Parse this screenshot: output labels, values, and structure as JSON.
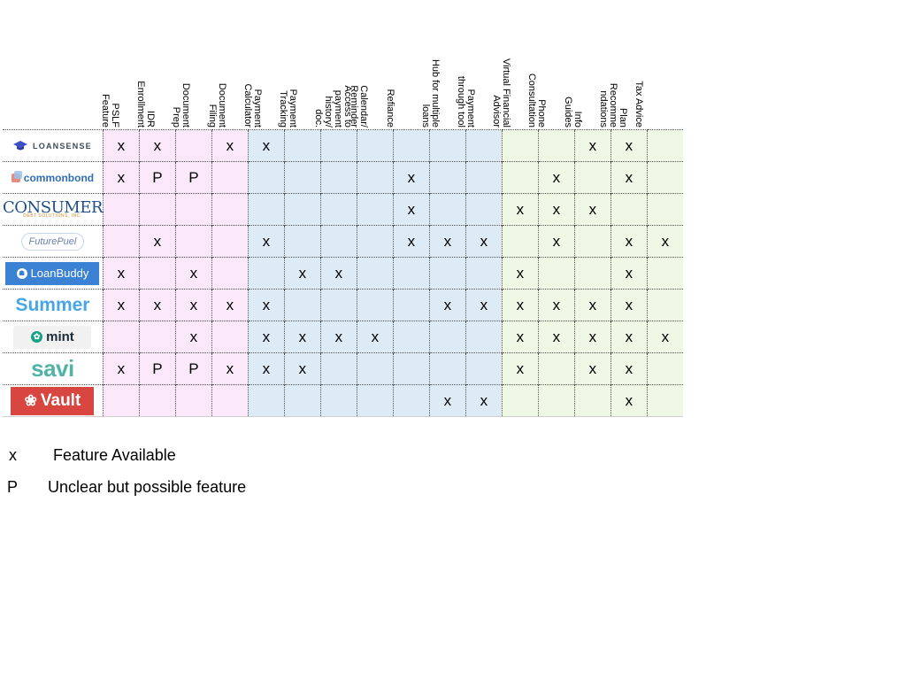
{
  "columns": [
    {
      "label": "PSLF\nFeature",
      "group": "pink"
    },
    {
      "label": "IDR\nEnrollment",
      "group": "pink"
    },
    {
      "label": "Document\nPrep",
      "group": "pink"
    },
    {
      "label": "Document\nFiling",
      "group": "pink"
    },
    {
      "label": "Payment\nCalculator",
      "group": "blue"
    },
    {
      "label": "Payment\nTracking",
      "group": "blue"
    },
    {
      "label": "Access to\npayment history/\ndoc.",
      "group": "blue"
    },
    {
      "label": "Calendar/\nReminder",
      "group": "blue"
    },
    {
      "label": "Refiance",
      "group": "blue"
    },
    {
      "label": "Hub for multiple\nloans",
      "group": "blue"
    },
    {
      "label": "Payment\nthrough tool",
      "group": "blue"
    },
    {
      "label": "Virtual Financial\nAdvisor",
      "group": "green"
    },
    {
      "label": "Phone\nConsultation",
      "group": "green"
    },
    {
      "label": "Info\nGuides",
      "group": "green"
    },
    {
      "label": "Plan\nRecomme\nndations",
      "group": "green"
    },
    {
      "label": "Tax Advice",
      "group": "green"
    }
  ],
  "rows": [
    {
      "company": "LOANSENSE",
      "logo": "loansense",
      "cells": [
        "x",
        "x",
        "",
        "x",
        "x",
        "",
        "",
        "",
        "",
        "",
        "",
        "",
        "",
        "x",
        "x",
        ""
      ]
    },
    {
      "company": "commonbond",
      "logo": "commonbond",
      "cells": [
        "x",
        "P",
        "P",
        "",
        "",
        "",
        "",
        "",
        "x",
        "",
        "",
        "",
        "x",
        "",
        "x",
        ""
      ]
    },
    {
      "company": "CONSUMER",
      "logo_sub": "DEBT SOLUTIONS, INC.",
      "logo": "consumer",
      "cells": [
        "",
        "",
        "",
        "",
        "",
        "",
        "",
        "",
        "x",
        "",
        "",
        "x",
        "x",
        "x",
        "",
        ""
      ]
    },
    {
      "company": "FuturePuel",
      "logo": "futurefuel",
      "cells": [
        "",
        "x",
        "",
        "",
        "x",
        "",
        "",
        "",
        "x",
        "x",
        "x",
        "",
        "x",
        "",
        "x",
        "x"
      ]
    },
    {
      "company": "LoanBuddy",
      "logo": "loanbuddy",
      "cells": [
        "x",
        "",
        "x",
        "",
        "",
        "x",
        "x",
        "",
        "",
        "",
        "",
        "x",
        "",
        "",
        "x",
        ""
      ]
    },
    {
      "company": "Summer",
      "logo": "summer",
      "cells": [
        "x",
        "x",
        "x",
        "x",
        "x",
        "",
        "",
        "",
        "",
        "x",
        "x",
        "x",
        "x",
        "x",
        "x",
        ""
      ]
    },
    {
      "company": "mint",
      "logo": "mint",
      "cells": [
        "",
        "",
        "x",
        "",
        "x",
        "x",
        "x",
        "x",
        "",
        "",
        "",
        "x",
        "x",
        "x",
        "x",
        "x"
      ]
    },
    {
      "company": "savi",
      "logo": "savi",
      "cells": [
        "x",
        "P",
        "P",
        "x",
        "x",
        "x",
        "",
        "",
        "",
        "",
        "",
        "x",
        "",
        "x",
        "x",
        ""
      ]
    },
    {
      "company": "Vault",
      "logo": "vault",
      "cells": [
        "",
        "",
        "",
        "",
        "",
        "",
        "",
        "",
        "",
        "x",
        "x",
        "",
        "",
        "",
        "x",
        ""
      ]
    }
  ],
  "legend": [
    {
      "symbol": "x",
      "text": "Feature Available"
    },
    {
      "symbol": "P",
      "text": "Unclear but possible feature"
    }
  ],
  "colors": {
    "pink": "#fbe9fb",
    "blue": "#ddebf7",
    "green": "#eef8e4"
  }
}
